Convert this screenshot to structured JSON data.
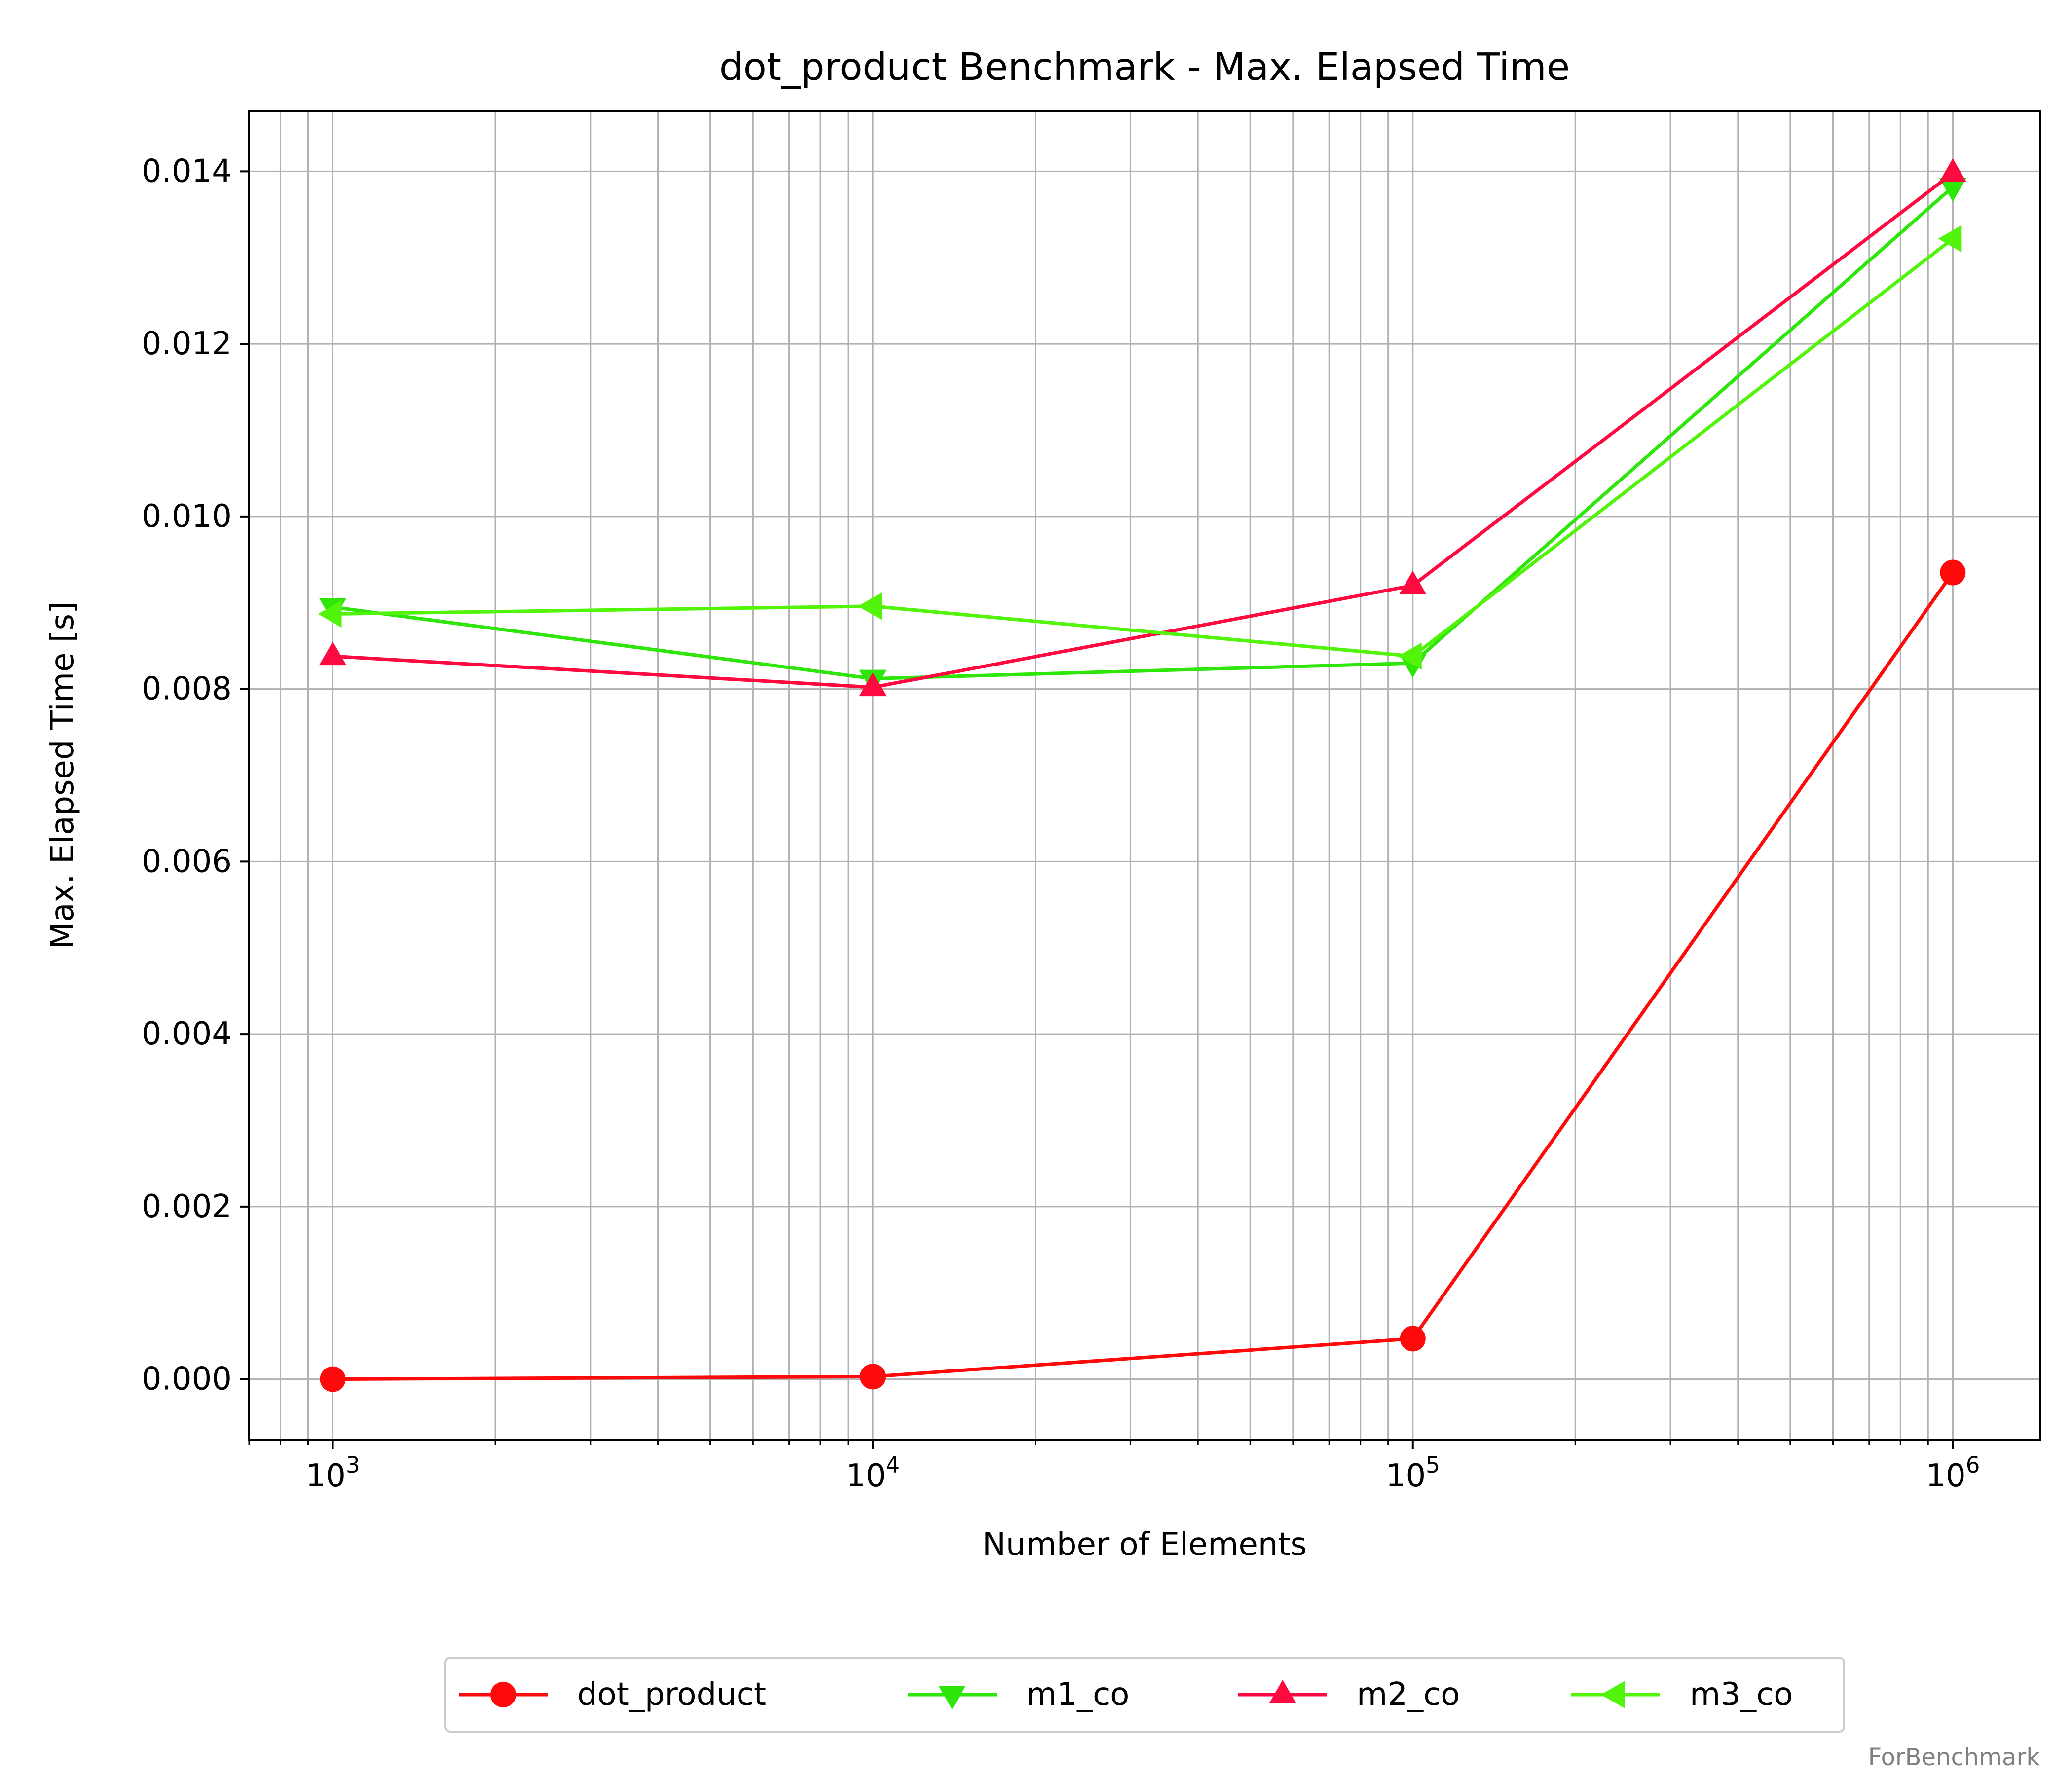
{
  "chart_data": {
    "type": "line",
    "title": "dot_product Benchmark - Max. Elapsed Time",
    "xlabel": "Number of Elements",
    "ylabel": "Max. Elapsed Time [s]",
    "xscale": "log",
    "x": [
      1000,
      10000,
      100000,
      1000000
    ],
    "x_tick_labels": [
      {
        "value": 1000,
        "base": "10",
        "exp": "3"
      },
      {
        "value": 10000,
        "base": "10",
        "exp": "4"
      },
      {
        "value": 100000,
        "base": "10",
        "exp": "5"
      },
      {
        "value": 1000000,
        "base": "10",
        "exp": "6"
      }
    ],
    "xlim": [
      700,
      1450000
    ],
    "ylim": [
      -0.0007,
      0.0147
    ],
    "y_ticks": [
      0.0,
      0.002,
      0.004,
      0.006,
      0.008,
      0.01,
      0.012,
      0.014
    ],
    "y_tick_labels": [
      "0.000",
      "0.002",
      "0.004",
      "0.006",
      "0.008",
      "0.010",
      "0.012",
      "0.014"
    ],
    "grid": "both (major and minor)",
    "legend_position": "bottom-center, below the plot",
    "series": [
      {
        "name": "dot_product",
        "color": "#ff0a0a",
        "marker": "circle",
        "values": [
          0.0,
          3e-05,
          0.00047,
          0.00935
        ]
      },
      {
        "name": "m1_co",
        "color": "#2ee60a",
        "marker": "triangle-down",
        "values": [
          0.00895,
          0.00812,
          0.0083,
          0.01382
        ]
      },
      {
        "name": "m2_co",
        "color": "#ff0a40",
        "marker": "triangle-up",
        "values": [
          0.00838,
          0.00802,
          0.0092,
          0.01398
        ]
      },
      {
        "name": "m3_co",
        "color": "#52f50a",
        "marker": "triangle-left",
        "values": [
          0.00887,
          0.00896,
          0.00838,
          0.01322
        ]
      }
    ]
  },
  "watermark": "ForBenchmark"
}
